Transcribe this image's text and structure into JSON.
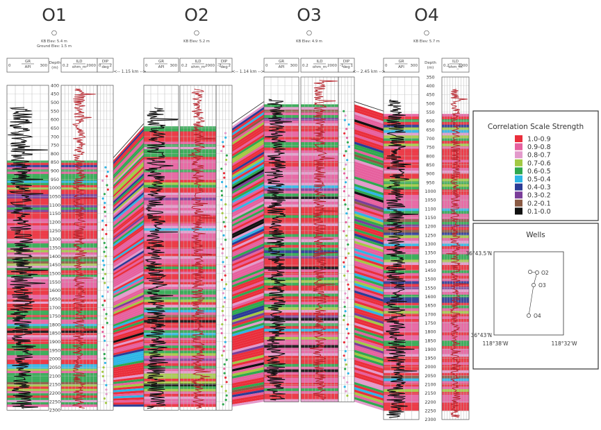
{
  "chart_data": {
    "type": "well-log-correlation",
    "wells": [
      {
        "name": "O1",
        "symbol": "○",
        "elev_lines": [
          "KB Elev: 5.4 m",
          "Ground Elev: 1.5 m"
        ],
        "depth_range": [
          400,
          2300
        ],
        "tracks": [
          {
            "curve": "GR",
            "unit": "API",
            "min": "0",
            "max": "300"
          },
          {
            "curve": "ILD",
            "unit": "ohm_m",
            "min": "0.2",
            "max": "2000"
          },
          {
            "curve": "DIP",
            "unit": "deg",
            "min": "0",
            "max": "2"
          }
        ],
        "correlated_from": 840,
        "correlated_to": 2280
      },
      {
        "name": "O2",
        "symbol": "○",
        "elev_lines": [
          "KB Elev: 5.2 m"
        ],
        "depth_range": [
          400,
          2300
        ],
        "tracks": [
          {
            "curve": "GR",
            "unit": "API",
            "min": "0",
            "max": "300"
          },
          {
            "curve": "ILD",
            "unit": "ohm_m",
            "min": "0.2",
            "max": "2000"
          },
          {
            "curve": "DIP",
            "unit": "deg",
            "min": "-2",
            "max": "2"
          }
        ],
        "correlated_from": 640,
        "correlated_to": 2280
      },
      {
        "name": "O3",
        "symbol": "○",
        "elev_lines": [
          "KB Elev: 4.9 m"
        ],
        "depth_range": [
          400,
          2300
        ],
        "tracks": [
          {
            "curve": "GR",
            "unit": "API",
            "min": "0",
            "max": "300"
          },
          {
            "curve": "ILD",
            "unit": "ohm_m",
            "min": "0.2",
            "max": "2000"
          },
          {
            "curve": "DIP",
            "unit": "deg",
            "min": "-1",
            "max": "1"
          }
        ],
        "correlated_from": 560,
        "correlated_to": 2300
      },
      {
        "name": "O4",
        "symbol": "○",
        "elev_lines": [
          "KB Elev: 5.7 m"
        ],
        "depth_range": [
          350,
          2300
        ],
        "tracks": [
          {
            "curve": "GR",
            "unit": "API",
            "min": "0",
            "max": "300"
          },
          {
            "curve": "ILD",
            "unit": "ohm_m",
            "min": "0.2",
            "max": "2000"
          }
        ],
        "correlated_from": 560,
        "correlated_to": 2250
      }
    ],
    "depth_header": {
      "label": "Depth",
      "unit": "(m)"
    },
    "depth_ticks_o1": [
      "400",
      "450",
      "500",
      "550",
      "600",
      "650",
      "700",
      "750",
      "800",
      "850",
      "900",
      "950",
      "1000",
      "1050",
      "1100",
      "1150",
      "1200",
      "1250",
      "1300",
      "1350",
      "1400",
      "1450",
      "1500",
      "1550",
      "1600",
      "1650",
      "1700",
      "1750",
      "1800",
      "1850",
      "1900",
      "1950",
      "2000",
      "2050",
      "2100",
      "2150",
      "2200",
      "2250",
      "2300"
    ],
    "depth_ticks_o4": [
      "350",
      "400",
      "450",
      "500",
      "550",
      "600",
      "650",
      "700",
      "750",
      "800",
      "850",
      "900",
      "950",
      "1000",
      "1050",
      "1100",
      "1150",
      "1200",
      "1250",
      "1300",
      "1350",
      "1400",
      "1450",
      "1500",
      "1550",
      "1600",
      "1650",
      "1700",
      "1750",
      "1800",
      "1850",
      "1900",
      "1950",
      "2000",
      "2050",
      "2100",
      "2150",
      "2200",
      "2250",
      "2300"
    ],
    "distances": [
      "1.15 km",
      "1.14 km",
      "2.45 km"
    ],
    "legend": {
      "title": "Correlation Scale Strength",
      "items": [
        {
          "label": "1.0-0.9",
          "color": "#ea2e3b"
        },
        {
          "label": "0.9-0.8",
          "color": "#e6609e"
        },
        {
          "label": "0.8-0.7",
          "color": "#e39acb"
        },
        {
          "label": "0.7-0.6",
          "color": "#a3c944"
        },
        {
          "label": "0.6-0.5",
          "color": "#2fa84f"
        },
        {
          "label": "0.5-0.4",
          "color": "#2eb6e6"
        },
        {
          "label": "0.4-0.3",
          "color": "#2b3b96"
        },
        {
          "label": "0.3-0.2",
          "color": "#7a3d99"
        },
        {
          "label": "0.2-0.1",
          "color": "#8a5a44"
        },
        {
          "label": "0.1-0.0",
          "color": "#111111"
        }
      ]
    },
    "map": {
      "title": "Wells",
      "lat_top": "36°43.5'N",
      "lat_bottom": "36°43'N",
      "lon_left": "118°38'W",
      "lon_right": "118°32'W",
      "well_labels": [
        "O2",
        "O3",
        "O4"
      ]
    }
  }
}
